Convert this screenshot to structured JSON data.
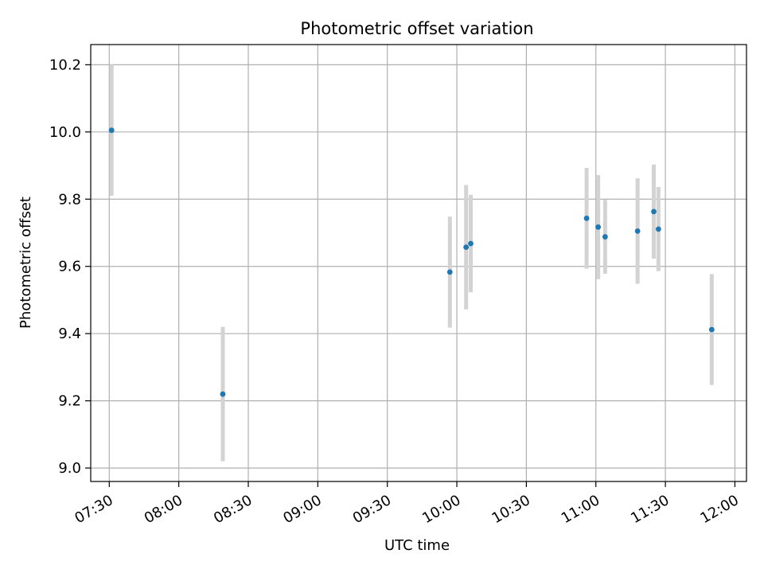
{
  "chart_data": {
    "type": "scatter",
    "title": "Photometric offset variation",
    "xlabel": "UTC time",
    "ylabel": "Photometric offset",
    "x_axis_type": "time",
    "xlim": [
      "07:22",
      "12:05"
    ],
    "ylim": [
      8.96,
      10.26
    ],
    "x_ticks": [
      "07:30",
      "08:00",
      "08:30",
      "09:00",
      "09:30",
      "10:00",
      "10:30",
      "11:00",
      "11:30",
      "12:00"
    ],
    "y_ticks": [
      "9.0",
      "9.2",
      "9.4",
      "9.6",
      "9.8",
      "10.0",
      "10.2"
    ],
    "grid": true,
    "legend": "none",
    "colors": {
      "point": "#1f77b4",
      "errorbar": "#d3d3d3",
      "grid": "#b0b0b0"
    },
    "series": [
      {
        "points": [
          {
            "x": "07:31",
            "y": 10.005,
            "err": 0.195
          },
          {
            "x": "08:19",
            "y": 9.22,
            "err": 0.2
          },
          {
            "x": "09:57",
            "y": 9.583,
            "err": 0.165
          },
          {
            "x": "10:04",
            "y": 9.657,
            "err": 0.185
          },
          {
            "x": "10:06",
            "y": 9.668,
            "err": 0.145
          },
          {
            "x": "10:56",
            "y": 9.743,
            "err": 0.15
          },
          {
            "x": "11:01",
            "y": 9.717,
            "err": 0.155
          },
          {
            "x": "11:04",
            "y": 9.688,
            "err": 0.11
          },
          {
            "x": "11:18",
            "y": 9.705,
            "err": 0.157
          },
          {
            "x": "11:25",
            "y": 9.763,
            "err": 0.14
          },
          {
            "x": "11:27",
            "y": 9.711,
            "err": 0.125
          },
          {
            "x": "11:50",
            "y": 9.412,
            "err": 0.165
          }
        ]
      }
    ]
  }
}
